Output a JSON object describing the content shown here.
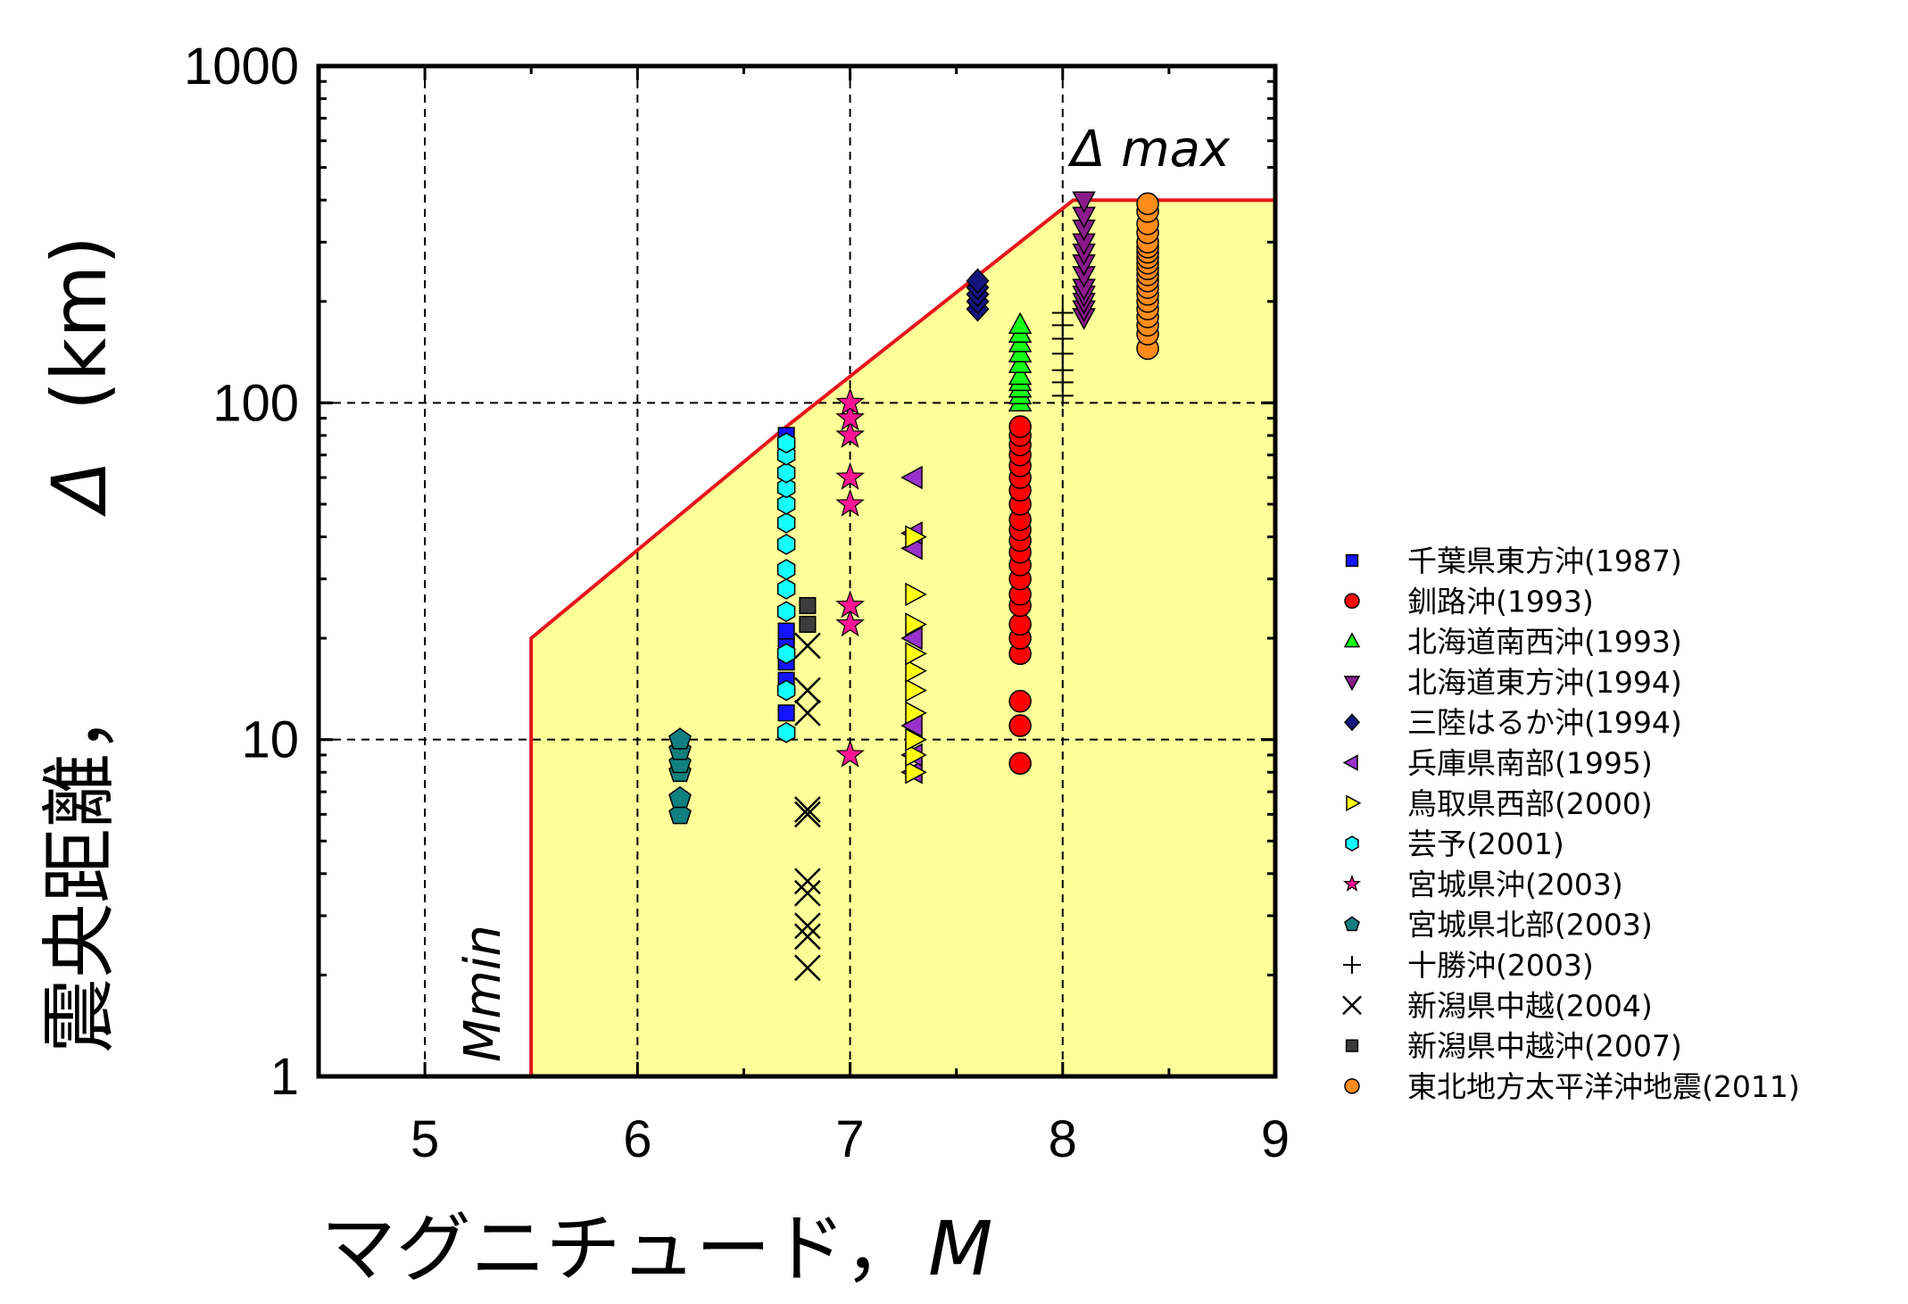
{
  "chart_data": {
    "type": "scatter",
    "xlabel": "マグニチュード，",
    "xlabel_symbol": "M",
    "ylabel": "震央距離，",
    "ylabel_symbol": "Δ",
    "ylabel_unit": "(km)",
    "xlim": [
      4.5,
      9
    ],
    "ylim": [
      1,
      1000
    ],
    "y_scale": "log",
    "x_ticks": [
      "5",
      "6",
      "7",
      "8",
      "9"
    ],
    "y_ticks": [
      "1",
      "10",
      "100",
      "1000"
    ],
    "grid": "dashed at x=5,6,7,8 and y=10,100",
    "legend_position": "right",
    "annotations": {
      "mmin": "Mmin",
      "dmax": "Δ max"
    },
    "boundary": {
      "color": "#e8141c",
      "fill": "#ffff99",
      "points": [
        [
          5.5,
          1
        ],
        [
          5.5,
          20
        ],
        [
          6.7,
          85
        ],
        [
          8.05,
          400
        ],
        [
          9,
          400
        ]
      ]
    },
    "series": [
      {
        "name": "千葉県東方沖(1987)",
        "marker": "square",
        "color": "#1414ff",
        "x": 6.7,
        "y": [
          12,
          15,
          17,
          19,
          21,
          80
        ]
      },
      {
        "name": "釧路沖(1993)",
        "marker": "circle",
        "color": "#ff0000",
        "x": 7.8,
        "y": [
          8.5,
          11,
          13,
          18,
          20,
          22,
          25,
          27,
          30,
          33,
          36,
          39,
          42,
          45,
          50,
          55,
          60,
          65,
          70,
          75,
          80,
          85
        ]
      },
      {
        "name": "北海道南西沖(1993)",
        "marker": "triangle-up",
        "color": "#14ff14",
        "x": 7.8,
        "y": [
          100,
          105,
          110,
          115,
          120,
          130,
          140,
          150,
          160,
          170
        ]
      },
      {
        "name": "北海道東方沖(1994)",
        "marker": "triangle-down",
        "color": "#8b1a8b",
        "x": 8.1,
        "y": [
          180,
          190,
          200,
          210,
          220,
          240,
          260,
          280,
          300,
          330,
          360,
          400
        ]
      },
      {
        "name": "三陸はるか沖(1994)",
        "marker": "diamond",
        "color": "#14147f",
        "x": 7.6,
        "y": [
          190,
          200,
          210,
          220,
          230
        ]
      },
      {
        "name": "兵庫県南部(1995)",
        "marker": "triangle-left",
        "color": "#9932cc",
        "x": 7.3,
        "y": [
          8,
          9,
          11,
          20,
          37,
          41,
          60
        ]
      },
      {
        "name": "鳥取県西部(2000)",
        "marker": "triangle-right",
        "color": "#ffff14",
        "x": 7.3,
        "y": [
          8,
          9,
          10,
          12,
          14,
          16,
          18,
          22,
          27,
          40
        ]
      },
      {
        "name": "芸予(2001)",
        "marker": "hexagon",
        "color": "#14ffff",
        "x": 6.7,
        "y": [
          10.5,
          14,
          18,
          24,
          28,
          32,
          38,
          44,
          50,
          56,
          62,
          70,
          76
        ]
      },
      {
        "name": "宮城県沖(2003)",
        "marker": "star",
        "color": "#ff1493",
        "x": 7.0,
        "y": [
          9,
          22,
          25,
          50,
          60,
          80,
          90,
          100
        ]
      },
      {
        "name": "宮城県北部(2003)",
        "marker": "pentagon",
        "color": "#0f7f7f",
        "x": 6.2,
        "y": [
          6,
          6.7,
          8,
          8.5,
          9.3,
          10
        ]
      },
      {
        "name": "十勝沖(2003)",
        "marker": "plus",
        "color": "#000000",
        "x": 8.0,
        "y": [
          105,
          115,
          125,
          140,
          155,
          170,
          185
        ]
      },
      {
        "name": "新潟県中越(2004)",
        "marker": "x",
        "color": "#000000",
        "x": 6.8,
        "y": [
          2.1,
          2.6,
          2.8,
          3.5,
          3.8,
          6,
          6.2,
          12,
          14,
          19
        ]
      },
      {
        "name": "新潟県中越沖(2007)",
        "marker": "square",
        "color": "#3c3c3c",
        "x": 6.8,
        "y": [
          22,
          25
        ]
      },
      {
        "name": "東北地方太平洋沖地震(2011)",
        "marker": "circle",
        "color": "#ff8c1a",
        "x": 8.4,
        "y": [
          145,
          160,
          170,
          180,
          190,
          200,
          210,
          220,
          230,
          240,
          250,
          260,
          270,
          280,
          290,
          300,
          320,
          340,
          370,
          390
        ]
      }
    ]
  }
}
